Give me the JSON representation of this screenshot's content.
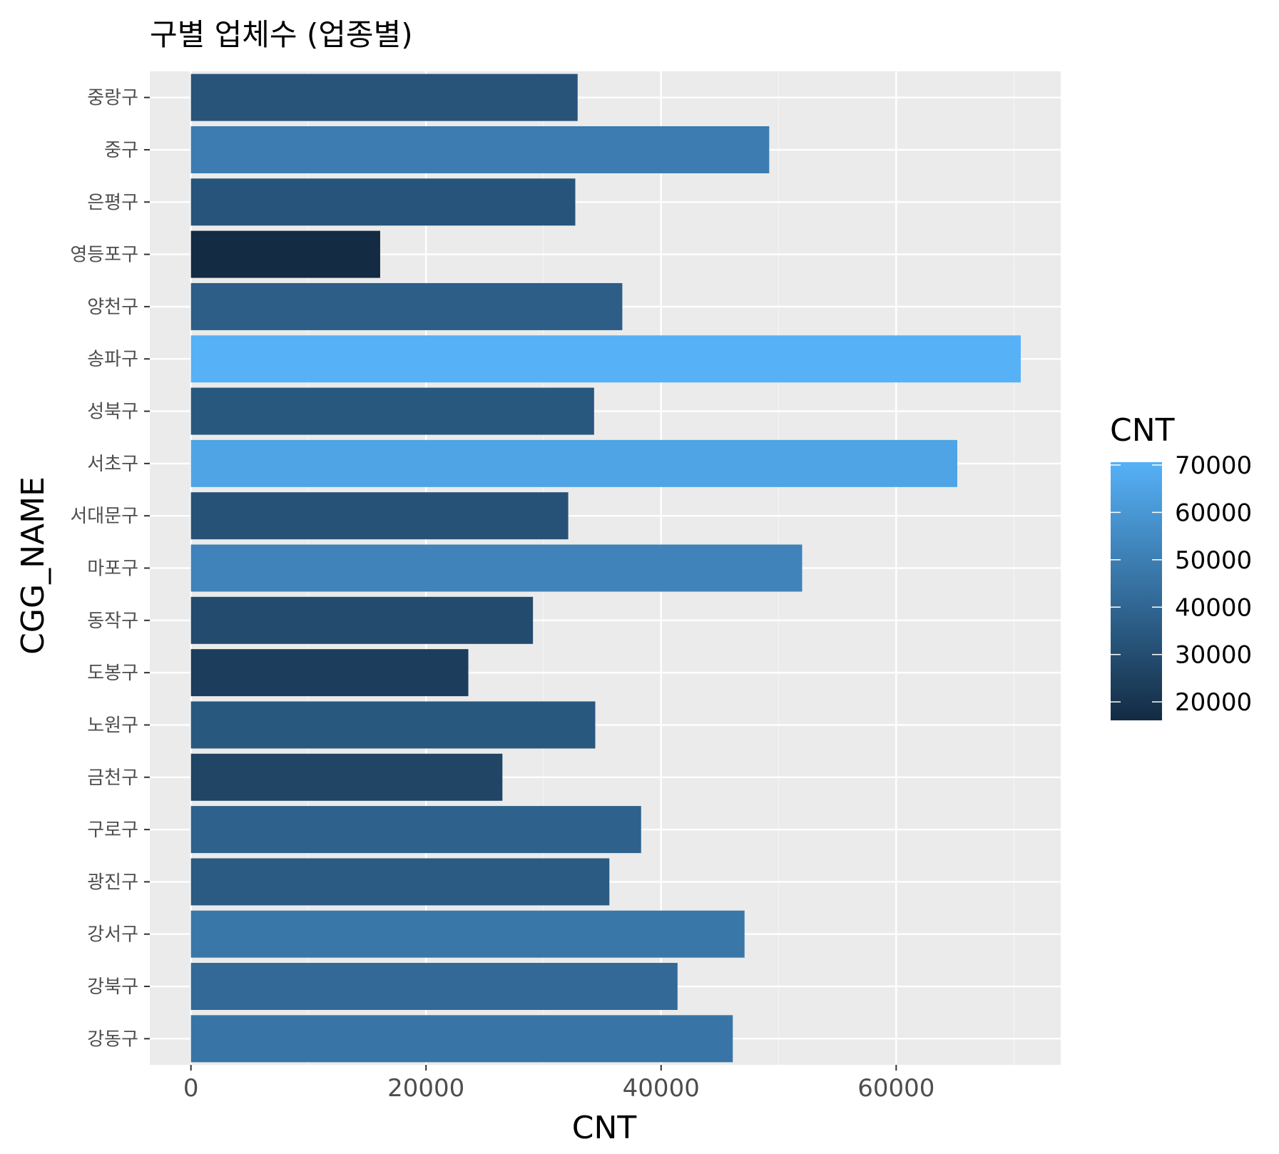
{
  "chart_data": {
    "type": "bar",
    "orientation": "horizontal",
    "title": "구별 업체수 (업종별)",
    "xlabel": "CNT",
    "ylabel": "CGG_NAME",
    "xlim": [
      -3500,
      74000
    ],
    "x_ticks": [
      0,
      20000,
      40000,
      60000
    ],
    "grid": true,
    "categories": [
      "강동구",
      "강북구",
      "강서구",
      "광진구",
      "구로구",
      "금천구",
      "노원구",
      "도봉구",
      "동작구",
      "마포구",
      "서대문구",
      "서초구",
      "성북구",
      "송파구",
      "양천구",
      "영등포구",
      "은평구",
      "중구",
      "중랑구"
    ],
    "values": [
      46100,
      41400,
      47100,
      35600,
      38300,
      26500,
      34400,
      23600,
      29100,
      52000,
      32100,
      65200,
      34300,
      70600,
      36700,
      16100,
      32700,
      49200,
      32900
    ],
    "legend": {
      "title": "CNT",
      "position": "right",
      "range": [
        16100,
        70600
      ],
      "ticks": [
        20000,
        30000,
        40000,
        50000,
        60000,
        70000
      ],
      "color_low": "#132B43",
      "color_high": "#56B1F7"
    },
    "colors": {
      "panel_background": "#EBEBEB",
      "grid_major": "#FFFFFF",
      "grid_minor": "#F5F5F5",
      "tick_color": "#333333"
    }
  }
}
